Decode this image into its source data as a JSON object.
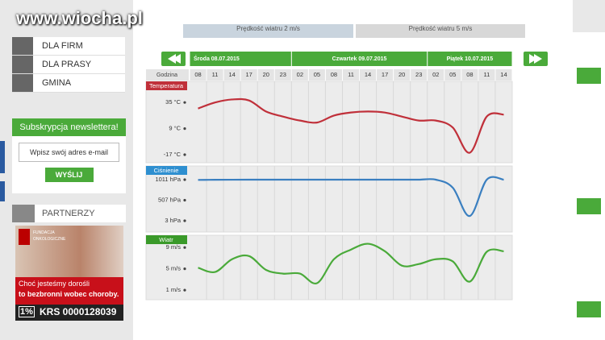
{
  "site": {
    "logo": "www.wiocha.pl"
  },
  "sidebar": {
    "menu": [
      "DLA FIRM",
      "DLA PRASY",
      "GMINA"
    ],
    "newsletter": {
      "title": "Subskrypcja newslettera!",
      "placeholder": "Wpisz swój adres e-mail",
      "button": "WYŚLIJ"
    },
    "partners": "PARTNERZY",
    "ad": {
      "org": "FUNDACJA",
      "org2": "ONKOLOGICZNE",
      "line1": "Choć jesteśmy dorośli",
      "line2": "to bezbronni wobec choroby.",
      "percent": "1%",
      "krs": "KRS 0000128039"
    }
  },
  "top_tabs": [
    {
      "label": "Prędkość wiatru",
      "value": "2 m/s"
    },
    {
      "label": "Prędkość wiatru",
      "value": "5 m/s"
    }
  ],
  "forecast": {
    "hour_heading": "Godzina",
    "days": [
      {
        "label": "Środa 08.07.2015",
        "span": 6
      },
      {
        "label": "Czwartek 09.07.2015",
        "span": 8
      },
      {
        "label": "Piątek 10.07.2015",
        "span": 5
      }
    ],
    "hours": [
      "08",
      "11",
      "14",
      "17",
      "20",
      "23",
      "02",
      "05",
      "08",
      "11",
      "14",
      "17",
      "20",
      "23",
      "02",
      "05",
      "08",
      "11",
      "14"
    ]
  },
  "chart_data": [
    {
      "type": "line",
      "title": "Temperatura",
      "color": "#c0303a",
      "title_color": "#c0303a",
      "values": [
        29,
        35,
        38,
        37,
        26,
        21,
        17,
        15,
        22,
        25,
        26,
        25,
        21,
        17,
        17,
        10,
        -15,
        21,
        23
      ],
      "ylim": [
        -25,
        56
      ],
      "yticks": [
        {
          "value": 35,
          "label": "35 °C"
        },
        {
          "value": 9,
          "label": "9 °C"
        },
        {
          "value": -17,
          "label": "-17 °C"
        }
      ]
    },
    {
      "type": "line",
      "title": "Ciśnienie",
      "color": "#3a7fc0",
      "title_color": "#2e8fd0",
      "values": [
        1005,
        1008,
        1010,
        1011,
        1011,
        1011,
        1011,
        1011,
        1011,
        1011,
        1011,
        1011,
        1011,
        1011,
        1011,
        813,
        120,
        1011,
        1011
      ],
      "ylim": [
        -274,
        1347
      ],
      "yticks": [
        {
          "value": 1011,
          "label": "1011 hPa"
        },
        {
          "value": 507,
          "label": "507 hPa"
        },
        {
          "value": 3,
          "label": "3 hPa"
        }
      ]
    },
    {
      "type": "line",
      "title": "Wiatr",
      "color": "#4aaa3a",
      "title_color": "#3a9a2a",
      "values": [
        5.2,
        4.4,
        6.8,
        7.4,
        4.8,
        4.1,
        4.1,
        2.3,
        6.8,
        8.6,
        9.7,
        8.3,
        5.6,
        5.9,
        6.8,
        6.4,
        2.6,
        8.2,
        8.3
      ],
      "ylim": [
        -0.8,
        11.3
      ],
      "yticks": [
        {
          "value": 9,
          "label": "9 m/s"
        },
        {
          "value": 5,
          "label": "5 m/s"
        },
        {
          "value": 1,
          "label": "1 m/s"
        }
      ]
    }
  ]
}
